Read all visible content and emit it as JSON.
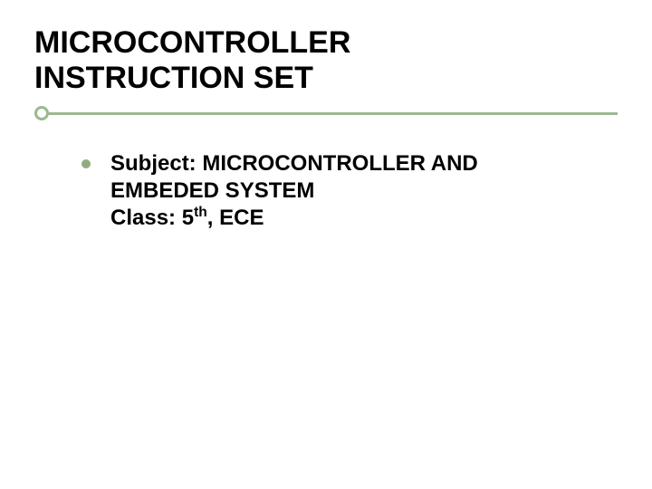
{
  "slide": {
    "background_color": "#ffffff",
    "title": {
      "line1": "MICROCONTROLLER",
      "line2": "INSTRUCTION SET",
      "fontsize": 34,
      "font_weight": "bold",
      "color": "#000000"
    },
    "divider": {
      "line_color": "#9bb98f",
      "circle_border_color": "#9bb98f",
      "circle_fill": "#ffffff",
      "line_thickness": 3,
      "circle_diameter": 16
    },
    "bullet": {
      "color": "#90ab82",
      "diameter": 10
    },
    "body": {
      "line1": "Subject: MICROCONTROLLER AND",
      "line2": "EMBEDED SYSTEM",
      "line3_prefix": "Class: 5",
      "line3_sup": "th",
      "line3_suffix": ", ECE",
      "fontsize": 24,
      "font_weight": "bold",
      "color": "#000000"
    }
  }
}
